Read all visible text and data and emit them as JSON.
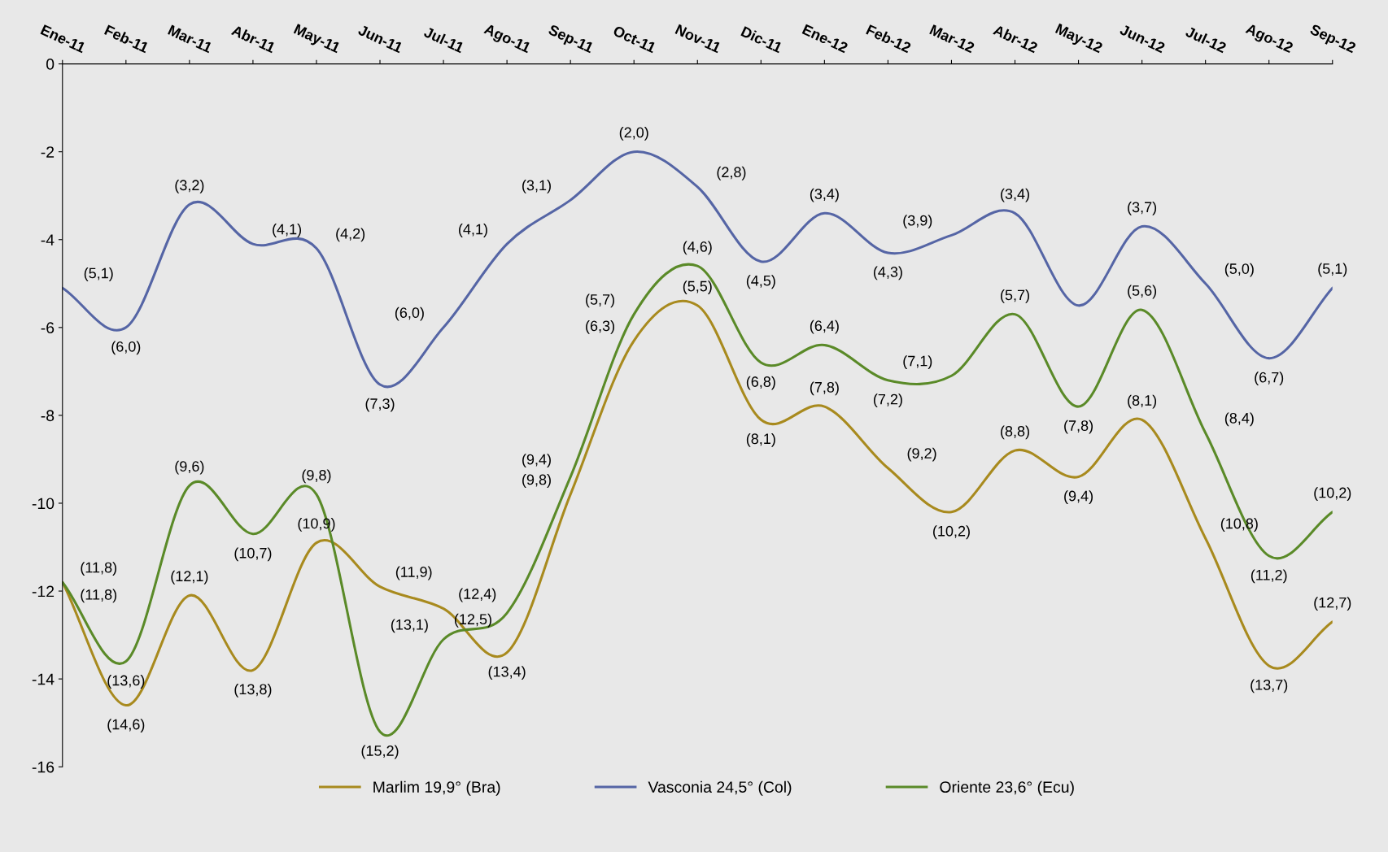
{
  "chart_data": {
    "type": "line",
    "categories": [
      "Ene-11",
      "Feb-11",
      "Mar-11",
      "Abr-11",
      "May-11",
      "Jun-11",
      "Jul-11",
      "Ago-11",
      "Sep-11",
      "Oct-11",
      "Nov-11",
      "Dic-11",
      "Ene-12",
      "Feb-12",
      "Mar-12",
      "Abr-12",
      "May-12",
      "Jun-12",
      "Jul-12",
      "Ago-12",
      "Sep-12"
    ],
    "series": [
      {
        "name": "Marlim 19,9° (Bra)",
        "color": "#a88a1e",
        "values": [
          -11.8,
          -14.6,
          -12.1,
          -13.8,
          -10.9,
          -11.9,
          -12.4,
          -13.4,
          -9.8,
          -6.3,
          -5.5,
          -8.1,
          -7.8,
          -9.2,
          -10.2,
          -8.8,
          -9.4,
          -8.1,
          -10.8,
          -13.7,
          -12.7
        ],
        "value_labels": [
          "(11,8)",
          "(14,6)",
          "(12,1)",
          "(13,8)",
          "(10,9)",
          "(11,9)",
          "(12,4)",
          "(13,4)",
          "(9,8)",
          "(6,3)",
          "(5,5)",
          "(8,1)",
          "(7,8)",
          "(9,2)",
          "(10,2)",
          "(8,8)",
          "(9,4)",
          "(8,1)",
          "(10,8)",
          "(13,7)",
          "(12,7)"
        ]
      },
      {
        "name": "Vasconia 24,5° (Col)",
        "color": "#5565a5",
        "values": [
          -5.1,
          -6.0,
          -3.2,
          -4.1,
          -4.2,
          -7.3,
          -6.0,
          -4.1,
          -3.1,
          -2.0,
          -2.8,
          -4.5,
          -3.4,
          -4.3,
          -3.9,
          -3.4,
          -5.5,
          -3.7,
          -5.0,
          -6.7,
          -5.1
        ],
        "value_labels": [
          "(5,1)",
          "(6,0)",
          "(3,2)",
          "(4,1)",
          "(4,2)",
          "(7,3)",
          "(6,0)",
          "(4,1)",
          "(3,1)",
          "(2,0)",
          "(2,8)",
          "(4,5)",
          "(3,4)",
          "(4,3)",
          "(3,9)",
          "(3,4)",
          null,
          "(3,7)",
          "(5,0)",
          "(6,7)",
          "(5,1)"
        ]
      },
      {
        "name": "Oriente 23,6° (Ecu)",
        "color": "#5a8a28",
        "values": [
          -11.8,
          -13.6,
          -9.6,
          -10.7,
          -9.8,
          -15.2,
          -13.1,
          -12.5,
          -9.4,
          -5.7,
          -4.6,
          -6.8,
          -6.4,
          -7.2,
          -7.1,
          -5.7,
          -7.8,
          -5.6,
          -8.4,
          -11.2,
          -10.2
        ],
        "value_labels": [
          "(11,8)",
          "(13,6)",
          "(9,6)",
          "(10,7)",
          "(9,8)",
          "(15,2)",
          "(13,1)",
          "(12,5)",
          "(9,4)",
          "(5,7)",
          "(4,6)",
          "(6,8)",
          "(6,4)",
          "(7,2)",
          "(7,1)",
          "(5,7)",
          "(7,8)",
          "(5,6)",
          "(8,4)",
          "(11,2)",
          "(10,2)"
        ]
      }
    ],
    "ylim": [
      -16,
      0
    ],
    "yticks": [
      -16,
      -14,
      -12,
      -10,
      -8,
      -6,
      -4,
      -2,
      0
    ],
    "grid": false,
    "legend": "bottom",
    "marker": "none",
    "line_style": "solid"
  }
}
